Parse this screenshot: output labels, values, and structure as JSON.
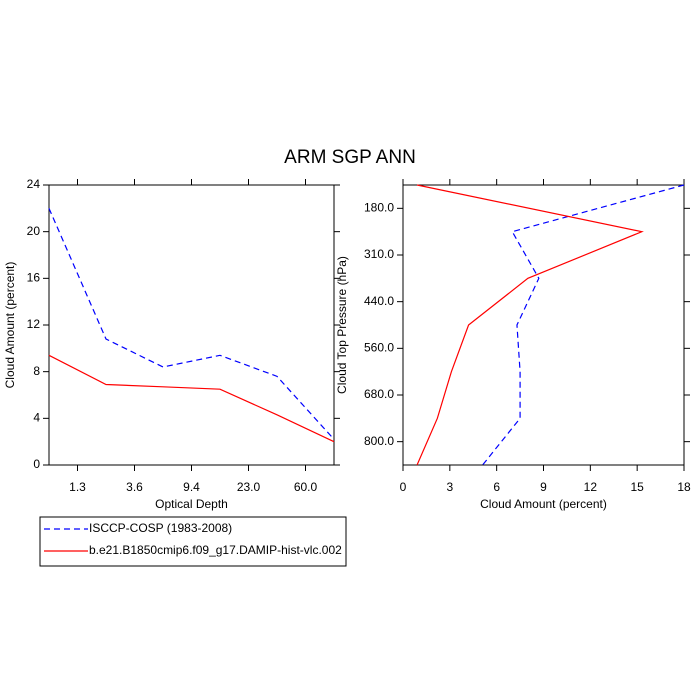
{
  "title": "ARM SGP ANN",
  "chart_data": [
    {
      "type": "line",
      "orientation": "vertical",
      "xlabel": "Optical Depth",
      "ylabel": "Cloud Amount (percent)",
      "x": [
        0,
        1,
        2,
        3,
        4,
        5
      ],
      "xlim": [
        0,
        5
      ],
      "xticks": [
        {
          "value": 0.5,
          "label": "1.3"
        },
        {
          "value": 1.5,
          "label": "3.6"
        },
        {
          "value": 2.5,
          "label": "9.4"
        },
        {
          "value": 3.5,
          "label": "23.0"
        },
        {
          "value": 4.5,
          "label": "60.0"
        }
      ],
      "ylim": [
        0,
        24
      ],
      "yticks": [
        0,
        4,
        8,
        12,
        16,
        20,
        24
      ],
      "legend": "below",
      "series": [
        {
          "name": "ISCCP-COSP (1983-2008)",
          "color": "#0000ff",
          "dash": true,
          "values": [
            22,
            10.8,
            8.4,
            9.4,
            7.6,
            2.2
          ]
        },
        {
          "name": "b.e21.B1850cmip6.f09_g17.DAMIP-hist-vlc.002",
          "color": "#ff0000",
          "dash": false,
          "values": [
            9.4,
            6.9,
            6.7,
            6.5,
            4.3,
            2.0
          ]
        }
      ]
    },
    {
      "type": "line",
      "orientation": "horizontal",
      "xlabel": "Cloud Amount (percent)",
      "ylabel": "Cloud Top Pressure (hPa)",
      "y": [
        0,
        1,
        2,
        3,
        4,
        5,
        6
      ],
      "ylim": [
        0,
        6
      ],
      "yticks": [
        {
          "value": 0.5,
          "label": "180.0"
        },
        {
          "value": 1.5,
          "label": "310.0"
        },
        {
          "value": 2.5,
          "label": "440.0"
        },
        {
          "value": 3.5,
          "label": "560.0"
        },
        {
          "value": 4.5,
          "label": "680.0"
        },
        {
          "value": 5.5,
          "label": "800.0"
        }
      ],
      "xlim": [
        0,
        18
      ],
      "xticks": [
        0,
        3,
        6,
        9,
        12,
        15,
        18
      ],
      "series": [
        {
          "color": "#0000ff",
          "dash": true,
          "values": [
            18,
            7.0,
            8.7,
            7.3,
            7.5,
            7.5,
            5.1
          ]
        },
        {
          "color": "#ff0000",
          "dash": false,
          "values": [
            0.9,
            15.3,
            8.0,
            4.2,
            3.1,
            2.2,
            0.9
          ]
        }
      ]
    }
  ]
}
